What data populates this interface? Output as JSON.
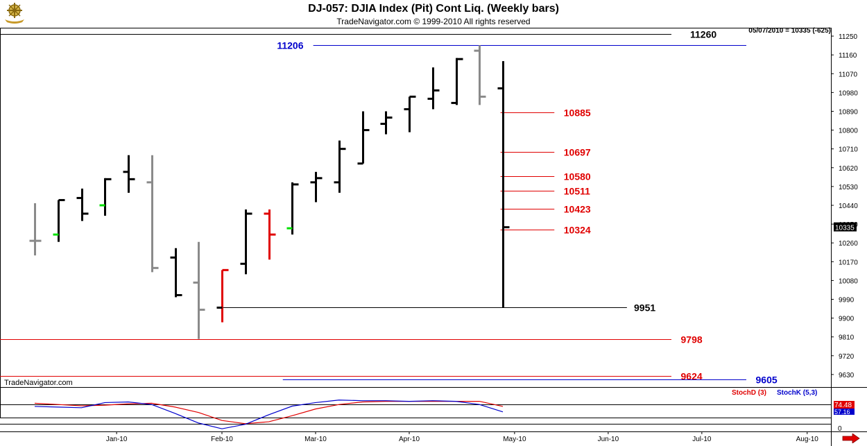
{
  "header": {
    "title": "DJ-057:  DJIA Index (Pit) Cont Liq.  (Weekly bars)",
    "subtitle": "TradeNavigator.com © 1999-2010 All rights reserved",
    "watermark": "TradeNavigator.com",
    "last_stamp": "05/07/2010 = 10335 (-625)",
    "logo_icon": "ship-wheel-logo-icon",
    "nav_icon": "right-arrow-icon"
  },
  "chart_data": {
    "type": "ohlc",
    "ylim": [
      9570,
      11290
    ],
    "y_ticks": [
      11250,
      11160,
      11070,
      10980,
      10890,
      10800,
      10710,
      10620,
      10530,
      10440,
      10350,
      10260,
      10170,
      10080,
      9990,
      9900,
      9810,
      9720,
      9630
    ],
    "x_labels": [
      "Jan-10",
      "Feb-10",
      "Mar-10",
      "Apr-10",
      "May-10",
      "Jun-10",
      "Jul-10",
      "Aug-10"
    ],
    "x_label_week_index": [
      3.5,
      8.0,
      12.0,
      16.0,
      20.5,
      24.5,
      28.5,
      33.0
    ],
    "weeks_visible": 37,
    "last_price": "10335",
    "colors": {
      "black": "#000000",
      "gray": "#8a8a8a",
      "red": "#e00000",
      "green": "#00e000",
      "blue": "#0000cc"
    },
    "bars": [
      {
        "o": 10270,
        "h": 10450,
        "l": 10200,
        "c": 10270,
        "color": "gray",
        "close_color": "gray"
      },
      {
        "o": 10300,
        "h": 10465,
        "l": 10265,
        "c": 10465,
        "color": "black",
        "close_color": "black",
        "open_color": "green"
      },
      {
        "o": 10475,
        "h": 10520,
        "l": 10365,
        "c": 10400,
        "color": "black",
        "close_color": "black"
      },
      {
        "o": 10440,
        "h": 10570,
        "l": 10390,
        "c": 10565,
        "color": "black",
        "close_color": "black",
        "open_color": "green"
      },
      {
        "o": 10600,
        "h": 10680,
        "l": 10500,
        "c": 10565,
        "color": "black",
        "close_color": "black"
      },
      {
        "o": 10550,
        "h": 10680,
        "l": 10120,
        "c": 10140,
        "color": "gray",
        "close_color": "gray"
      },
      {
        "o": 10190,
        "h": 10235,
        "l": 10000,
        "c": 10010,
        "color": "black",
        "close_color": "black"
      },
      {
        "o": 10070,
        "h": 10265,
        "l": 9800,
        "c": 9940,
        "color": "gray",
        "close_color": "gray"
      },
      {
        "o": 9950,
        "h": 10130,
        "l": 9880,
        "c": 10130,
        "color": "red",
        "close_color": "red",
        "open_color": "black"
      },
      {
        "o": 10160,
        "h": 10420,
        "l": 10110,
        "c": 10400,
        "color": "black",
        "close_color": "black"
      },
      {
        "o": 10400,
        "h": 10420,
        "l": 10180,
        "c": 10300,
        "color": "red",
        "close_color": "red"
      },
      {
        "o": 10330,
        "h": 10550,
        "l": 10300,
        "c": 10540,
        "color": "black",
        "close_color": "black",
        "open_color": "green"
      },
      {
        "o": 10550,
        "h": 10600,
        "l": 10455,
        "c": 10570,
        "color": "black",
        "close_color": "black"
      },
      {
        "o": 10550,
        "h": 10750,
        "l": 10500,
        "c": 10710,
        "color": "black",
        "close_color": "black"
      },
      {
        "o": 10640,
        "h": 10890,
        "l": 10640,
        "c": 10800,
        "color": "black",
        "close_color": "black"
      },
      {
        "o": 10830,
        "h": 10890,
        "l": 10780,
        "c": 10860,
        "color": "black",
        "close_color": "black"
      },
      {
        "o": 10900,
        "h": 10960,
        "l": 10790,
        "c": 10960,
        "color": "black",
        "close_color": "black"
      },
      {
        "o": 10950,
        "h": 11100,
        "l": 10900,
        "c": 10990,
        "color": "black",
        "close_color": "black"
      },
      {
        "o": 10930,
        "h": 11145,
        "l": 10920,
        "c": 11140,
        "color": "black",
        "close_color": "black"
      },
      {
        "o": 11180,
        "h": 11206,
        "l": 10920,
        "c": 10960,
        "color": "gray",
        "close_color": "gray"
      },
      {
        "o": 11000,
        "h": 11130,
        "l": 9951,
        "c": 10335,
        "color": "black",
        "close_color": "black"
      }
    ],
    "hlines": [
      {
        "value": 11260,
        "label": "11260",
        "color": "black",
        "x1_week": -1.5,
        "x2_week": 27.2,
        "label_week": 28.0
      },
      {
        "value": 11206,
        "label": "11206",
        "color": "blue",
        "x1_week": 11.9,
        "x2_week": 30.4,
        "label_week": 11.6,
        "label_side": "left"
      },
      {
        "value": 10885,
        "label": "10885",
        "color": "red",
        "x1_week": 19.9,
        "x2_week": 22.2,
        "label_week": 22.6
      },
      {
        "value": 10697,
        "label": "10697",
        "color": "red",
        "x1_week": 19.9,
        "x2_week": 22.2,
        "label_week": 22.6
      },
      {
        "value": 10580,
        "label": "10580",
        "color": "red",
        "x1_week": 19.9,
        "x2_week": 22.2,
        "label_week": 22.6
      },
      {
        "value": 10511,
        "label": "10511",
        "color": "red",
        "x1_week": 19.9,
        "x2_week": 22.2,
        "label_week": 22.6
      },
      {
        "value": 10423,
        "label": "10423",
        "color": "red",
        "x1_week": 19.9,
        "x2_week": 22.2,
        "label_week": 22.6
      },
      {
        "value": 10324,
        "label": "10324",
        "color": "red",
        "x1_week": 19.9,
        "x2_week": 22.2,
        "label_week": 22.6
      },
      {
        "value": 9951,
        "label": "9951",
        "color": "black",
        "x1_week": 7.9,
        "x2_week": 25.3,
        "label_week": 25.6
      },
      {
        "value": 9798,
        "label": "9798",
        "color": "red",
        "x1_week": -1.5,
        "x2_week": 27.2,
        "label_week": 27.6
      },
      {
        "value": 9624,
        "label": "9624",
        "color": "red",
        "x1_week": -1.5,
        "x2_week": 27.2,
        "label_week": 27.6
      },
      {
        "value": 9605,
        "label": "9605",
        "color": "blue",
        "x1_week": 10.6,
        "x2_week": 30.4,
        "label_week": 30.8
      }
    ],
    "stochastic": {
      "ylim": [
        0,
        100
      ],
      "levels": [
        80,
        20
      ],
      "y_ticks": [
        "0"
      ],
      "stochD": {
        "name": "StochD (3)",
        "color": "red",
        "value_label": "74.48",
        "values": [
          84,
          80,
          76,
          78,
          82,
          84,
          72,
          55,
          30,
          20,
          26,
          45,
          66,
          80,
          88,
          90,
          90,
          90,
          90,
          90,
          74
        ]
      },
      "stochK": {
        "name": "StochK (5,3)",
        "color": "blue",
        "value_label": "57.16",
        "values": [
          74,
          72,
          70,
          86,
          88,
          80,
          52,
          22,
          4,
          18,
          48,
          75,
          86,
          94,
          92,
          92,
          90,
          92,
          90,
          80,
          57
        ]
      }
    }
  }
}
